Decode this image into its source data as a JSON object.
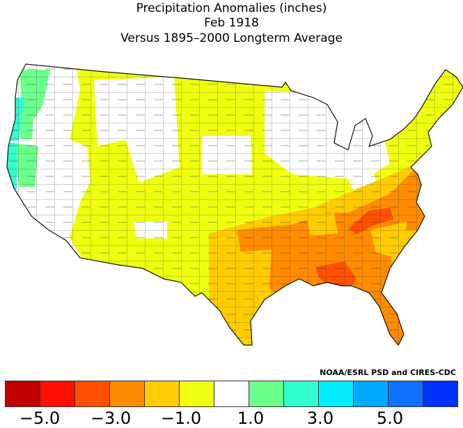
{
  "title": {
    "line1": "Precipitation Anomalies (inches)",
    "line2": "Feb 1918",
    "line3": "Versus 1895–2000 Longterm Average"
  },
  "credit": "NOAA/ESRL PSD and CIRES-CDC",
  "legend": {
    "colors": [
      "#c00000",
      "#ff1000",
      "#ff5000",
      "#ff8c00",
      "#ffcc00",
      "#f0ff10",
      "#ffffff",
      "#6cff8c",
      "#30ffd0",
      "#00eeff",
      "#00aaff",
      "#1070ff",
      "#0030ff"
    ],
    "ticks": [
      "−5.0",
      "−3.0",
      "−1.0",
      "1.0",
      "3.0",
      "5.0"
    ]
  },
  "map": {
    "regions": [
      {
        "name": "yellow-base",
        "category": "-1.0 to 0",
        "color": "#f0ff10"
      },
      {
        "name": "white-near-normal",
        "category": "0 to 1.0",
        "color": "#ffffff"
      },
      {
        "name": "green-wet",
        "category": "1.0 to 2.0",
        "color": "#6cff8c"
      },
      {
        "name": "cyan-wet",
        "category": "2.0 to 3.0",
        "color": "#30ffd0"
      },
      {
        "name": "gold-dry",
        "category": "-2.0 to -1.0",
        "color": "#ffcc00"
      },
      {
        "name": "orange-dry",
        "category": "-3.0 to -2.0",
        "color": "#ff8c00"
      },
      {
        "name": "redorange-dry",
        "category": "-4.0 to -3.0",
        "color": "#ff5000"
      }
    ]
  }
}
